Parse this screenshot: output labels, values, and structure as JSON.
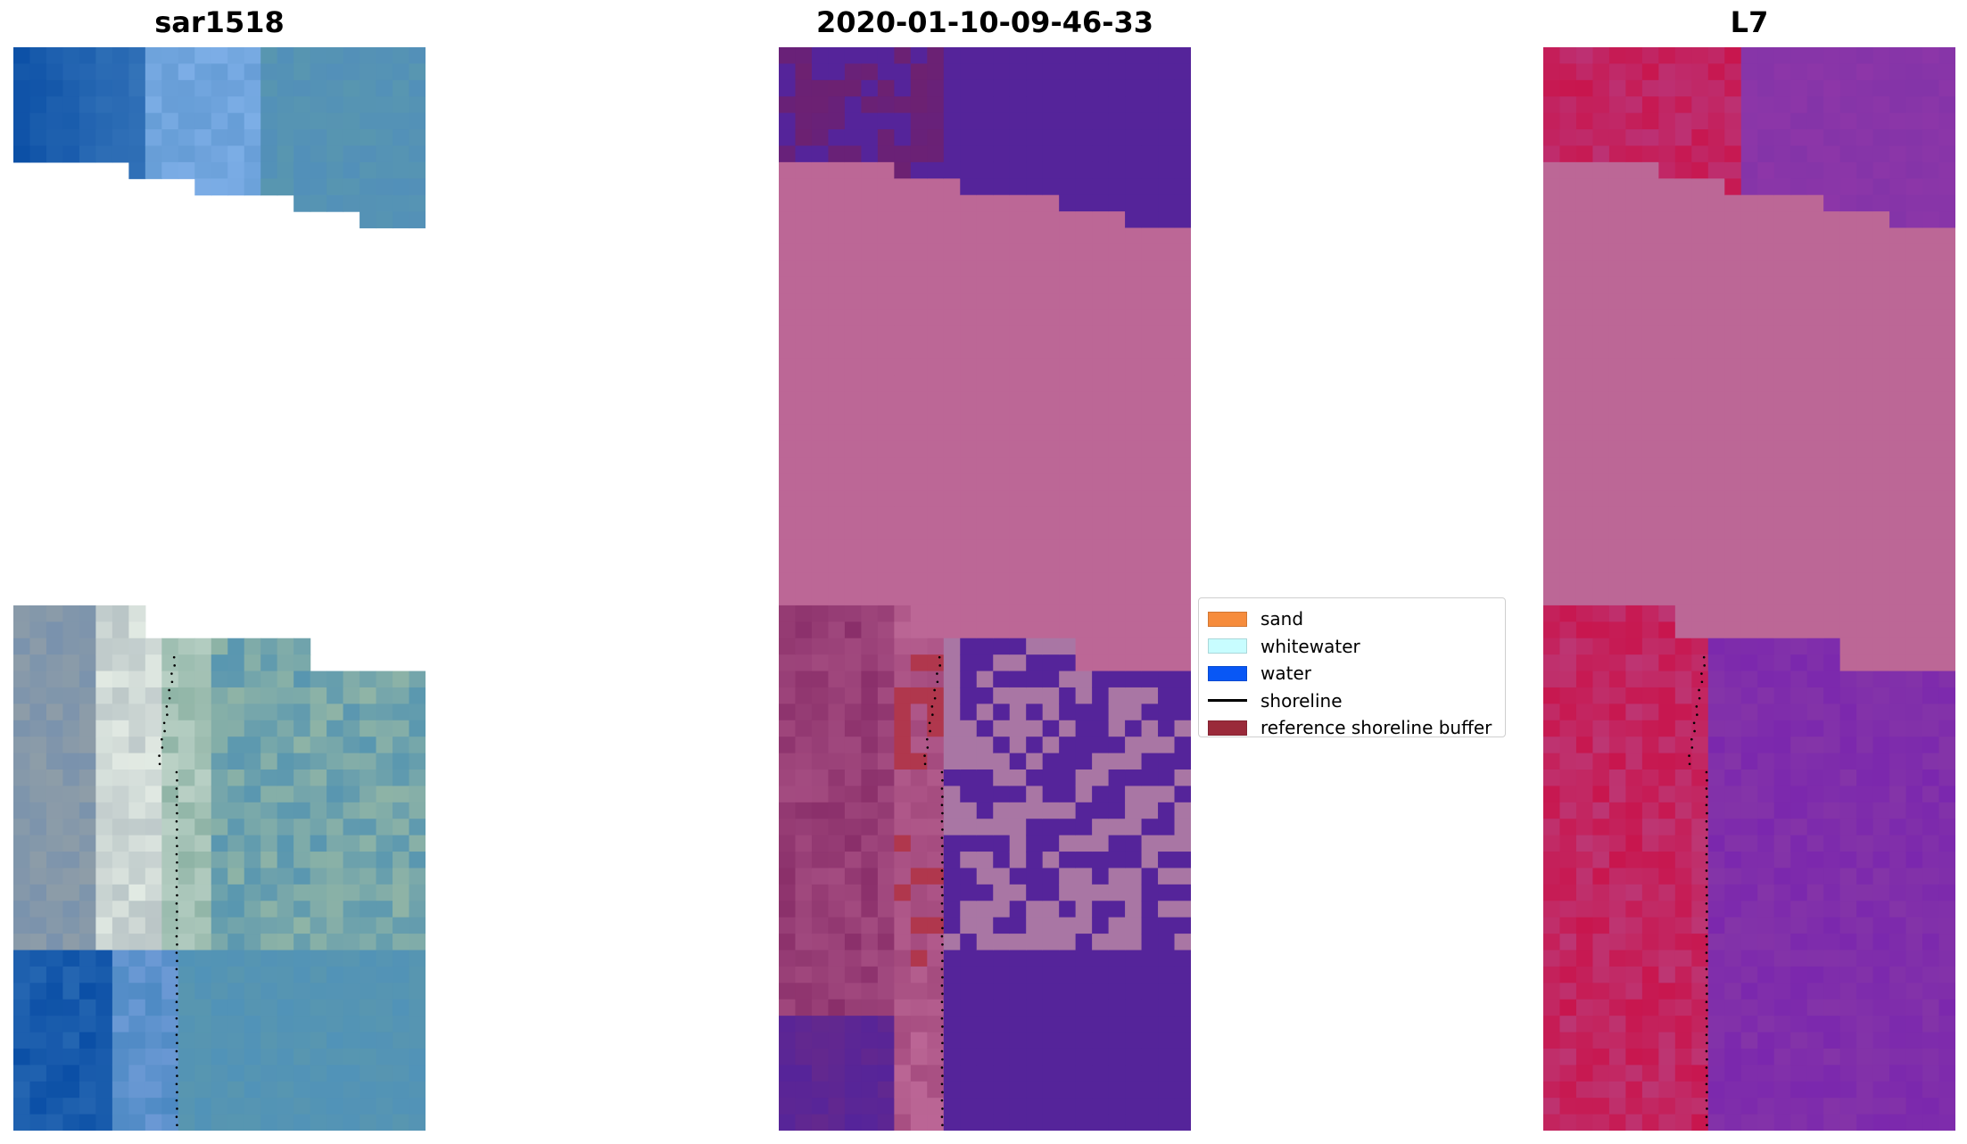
{
  "panels": [
    {
      "title": "sar1518"
    },
    {
      "title": "2020-01-10-09-46-33"
    },
    {
      "title": "L7"
    }
  ],
  "legend": {
    "items": [
      {
        "label": "sand",
        "color": "#f68c3c",
        "kind": "patch"
      },
      {
        "label": "whitewater",
        "color": "#c8fdff",
        "kind": "patch"
      },
      {
        "label": "water",
        "color": "#0857f5",
        "kind": "patch"
      },
      {
        "label": "shoreline",
        "color": "#000000",
        "kind": "line"
      },
      {
        "label": "reference shoreline buffer",
        "color": "#9a2a3a",
        "kind": "patch"
      }
    ]
  },
  "colors": {
    "no_data_mask": "#bc6796",
    "class_water_overlay": "#55249a",
    "class_sand_overlay": "#b0374d",
    "class_whitewater_overlay": "#a976a4",
    "l7_land": "#c8164e",
    "l7_sea": "#8434a8",
    "rgb_water_dark": "#0b4fa6",
    "rgb_water_blue": "#4c89c3",
    "rgb_sea_teal": "#5896b0",
    "rgb_foam": "#e6eee6",
    "rgb_sand_grey": "#8e9da8",
    "rgb_green_grey": "#8fb4a6"
  }
}
